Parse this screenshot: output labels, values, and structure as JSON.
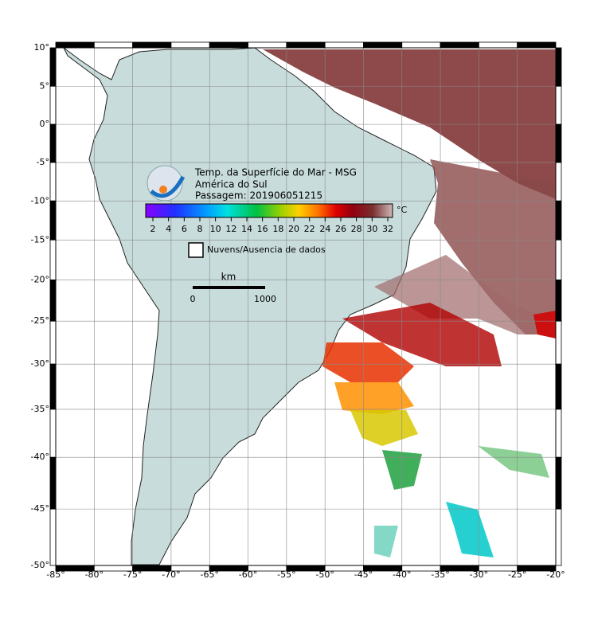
{
  "map": {
    "title": "Temp. da Superfície do Mar - MSG",
    "region": "América do Sul",
    "pass": "Passagem: 201906051215",
    "colorbar": {
      "unit": "°C",
      "ticks": [
        2,
        4,
        6,
        8,
        10,
        12,
        14,
        16,
        18,
        20,
        22,
        24,
        26,
        28,
        30,
        32
      ]
    },
    "legend": "Nuvens/Ausencia de dados",
    "scale": {
      "unit": "km",
      "labels": [
        "0",
        "1000"
      ]
    },
    "lat_ticks": [
      {
        "value": 10,
        "label": "10°"
      },
      {
        "value": 5,
        "label": "5°"
      },
      {
        "value": 0,
        "label": "0°"
      },
      {
        "value": -5,
        "label": "-5°"
      },
      {
        "value": -10,
        "label": "-10°"
      },
      {
        "value": -15,
        "label": "-15°"
      },
      {
        "value": -20,
        "label": "-20°"
      },
      {
        "value": -25,
        "label": "-25°"
      },
      {
        "value": -30,
        "label": "-30°"
      },
      {
        "value": -35,
        "label": "-35°"
      },
      {
        "value": -40,
        "label": "-40°"
      },
      {
        "value": -45,
        "label": "-45°"
      },
      {
        "value": -50,
        "label": "-50°"
      }
    ],
    "lon_ticks": [
      {
        "value": -85,
        "label": "-85°"
      },
      {
        "value": -80,
        "label": "-80°"
      },
      {
        "value": -75,
        "label": "-75°"
      },
      {
        "value": -70,
        "label": "-70°"
      },
      {
        "value": -65,
        "label": "-65°"
      },
      {
        "value": -60,
        "label": "-60°"
      },
      {
        "value": -55,
        "label": "-55°"
      },
      {
        "value": -50,
        "label": "-50°"
      },
      {
        "value": -45,
        "label": "-45°"
      },
      {
        "value": -40,
        "label": "-40°"
      },
      {
        "value": -35,
        "label": "-35°"
      },
      {
        "value": -30,
        "label": "-30°"
      },
      {
        "value": -25,
        "label": "-25°"
      },
      {
        "value": -20,
        "label": "-20°"
      }
    ]
  }
}
